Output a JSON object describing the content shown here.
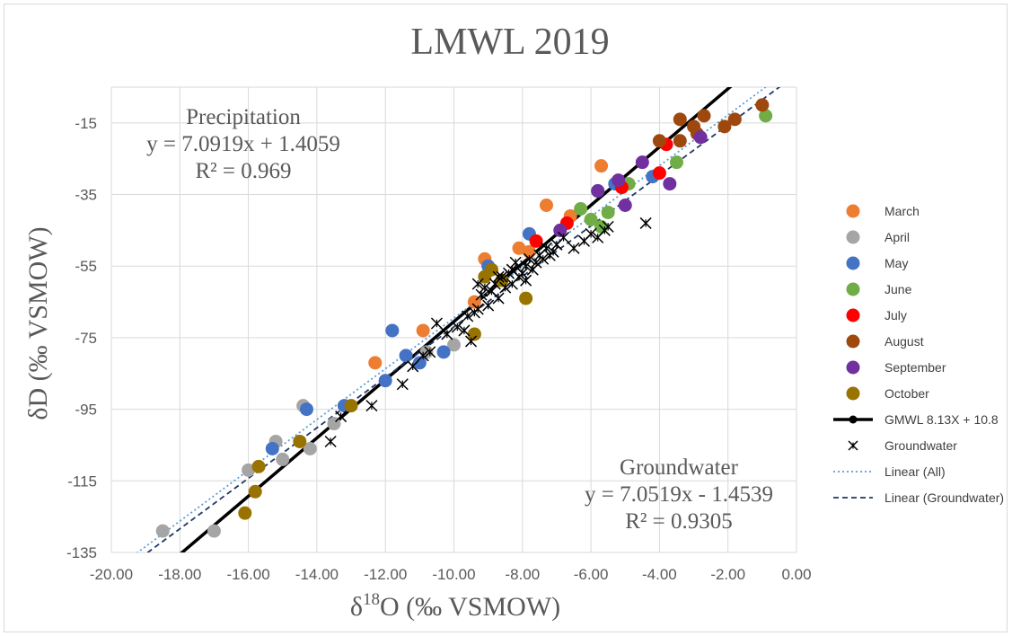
{
  "chart_data": {
    "type": "scatter",
    "title": "LMWL 2019",
    "xlabel": "δ18O (‰ VSMOW)",
    "xlabel_main": "δ",
    "xlabel_sup": "18",
    "xlabel_rest": "O (‰ VSMOW)",
    "ylabel": "δD (‰ VSMOW)",
    "xlim": [
      -20,
      0
    ],
    "ylim": [
      -135,
      -5
    ],
    "x_ticks": [
      -20,
      -18,
      -16,
      -14,
      -12,
      -10,
      -8,
      -6,
      -4,
      -2,
      0
    ],
    "x_tick_labels": [
      "-20.00",
      "-18.00",
      "-16.00",
      "-14.00",
      "-12.00",
      "-10.00",
      "-8.00",
      "-6.00",
      "-4.00",
      "-2.00",
      "0.00"
    ],
    "y_ticks": [
      -135,
      -115,
      -95,
      -75,
      -55,
      -35,
      -15
    ],
    "y_tick_labels": [
      "-135",
      "-115",
      "-95",
      "-75",
      "-55",
      "-35",
      "-15"
    ],
    "grid": true,
    "legend_position": "right",
    "series": [
      {
        "name": "March",
        "color": "#ed7d31",
        "marker": "circle",
        "points": [
          [
            -12.3,
            -82
          ],
          [
            -10.9,
            -73
          ],
          [
            -9.1,
            -53
          ],
          [
            -8.1,
            -50
          ],
          [
            -7.3,
            -38
          ],
          [
            -6.6,
            -41
          ],
          [
            -5.7,
            -27
          ],
          [
            -9.4,
            -65
          ],
          [
            -7.8,
            -51
          ]
        ]
      },
      {
        "name": "April",
        "color": "#a5a5a5",
        "marker": "circle",
        "points": [
          [
            -18.5,
            -129
          ],
          [
            -17.0,
            -129
          ],
          [
            -16.0,
            -112
          ],
          [
            -15.2,
            -104
          ],
          [
            -15.0,
            -109
          ],
          [
            -14.4,
            -94
          ],
          [
            -14.2,
            -106
          ],
          [
            -13.5,
            -99
          ],
          [
            -10.0,
            -77
          ],
          [
            -10.8,
            -79
          ]
        ]
      },
      {
        "name": "May",
        "color": "#4472c4",
        "marker": "circle",
        "points": [
          [
            -15.3,
            -106
          ],
          [
            -14.3,
            -95
          ],
          [
            -13.2,
            -94
          ],
          [
            -12.0,
            -87
          ],
          [
            -11.8,
            -73
          ],
          [
            -11.4,
            -80
          ],
          [
            -10.3,
            -79
          ],
          [
            -11.0,
            -82
          ],
          [
            -9.0,
            -55
          ],
          [
            -7.8,
            -46
          ],
          [
            -4.2,
            -30
          ],
          [
            -5.3,
            -32
          ],
          [
            -5.8,
            -34
          ]
        ]
      },
      {
        "name": "June",
        "color": "#70ad47",
        "marker": "circle",
        "points": [
          [
            -0.9,
            -13
          ],
          [
            -3.5,
            -26
          ],
          [
            -4.9,
            -32
          ],
          [
            -5.5,
            -40
          ],
          [
            -6.3,
            -39
          ],
          [
            -6.0,
            -42
          ],
          [
            -5.7,
            -44
          ]
        ]
      },
      {
        "name": "July",
        "color": "#ff0000",
        "marker": "circle",
        "points": [
          [
            -3.8,
            -21
          ],
          [
            -4.0,
            -29
          ],
          [
            -5.1,
            -33
          ],
          [
            -6.7,
            -43
          ],
          [
            -7.6,
            -48
          ]
        ]
      },
      {
        "name": "August",
        "color": "#9e480e",
        "marker": "circle",
        "points": [
          [
            -1.0,
            -10
          ],
          [
            -1.8,
            -14
          ],
          [
            -2.1,
            -16
          ],
          [
            -2.7,
            -13
          ],
          [
            -3.0,
            -16
          ],
          [
            -3.4,
            -14
          ],
          [
            -3.4,
            -20
          ],
          [
            -4.0,
            -20
          ],
          [
            -2.9,
            -18
          ]
        ]
      },
      {
        "name": "September",
        "color": "#7030a0",
        "marker": "circle",
        "points": [
          [
            -2.8,
            -19
          ],
          [
            -3.7,
            -32
          ],
          [
            -4.5,
            -26
          ],
          [
            -5.0,
            -38
          ],
          [
            -5.8,
            -34
          ],
          [
            -6.9,
            -45
          ],
          [
            -5.2,
            -31
          ]
        ]
      },
      {
        "name": "October",
        "color": "#997300",
        "marker": "circle",
        "points": [
          [
            -16.1,
            -124
          ],
          [
            -15.8,
            -118
          ],
          [
            -15.7,
            -111
          ],
          [
            -14.5,
            -104
          ],
          [
            -13.0,
            -94
          ],
          [
            -9.4,
            -74
          ],
          [
            -7.9,
            -64
          ],
          [
            -9.1,
            -58
          ],
          [
            -8.9,
            -56
          ],
          [
            -8.6,
            -59
          ]
        ]
      },
      {
        "name": "Groundwater",
        "color": "#000000",
        "marker": "x",
        "points": [
          [
            -13.6,
            -104
          ],
          [
            -12.4,
            -94
          ],
          [
            -11.5,
            -88
          ],
          [
            -11.2,
            -83
          ],
          [
            -10.9,
            -80
          ],
          [
            -10.7,
            -79
          ],
          [
            -10.5,
            -71
          ],
          [
            -10.2,
            -74
          ],
          [
            -9.9,
            -72
          ],
          [
            -9.7,
            -73
          ],
          [
            -9.5,
            -76
          ],
          [
            -9.4,
            -68
          ],
          [
            -9.3,
            -67
          ],
          [
            -9.2,
            -63
          ],
          [
            -9.0,
            -66
          ],
          [
            -9.1,
            -61
          ],
          [
            -8.9,
            -62
          ],
          [
            -8.8,
            -60
          ],
          [
            -8.7,
            -64
          ],
          [
            -8.6,
            -58
          ],
          [
            -8.5,
            -61
          ],
          [
            -8.4,
            -57
          ],
          [
            -8.3,
            -60
          ],
          [
            -8.2,
            -54
          ],
          [
            -8.1,
            -58
          ],
          [
            -8.0,
            -57
          ],
          [
            -7.9,
            -55
          ],
          [
            -7.8,
            -53
          ],
          [
            -7.7,
            -56
          ],
          [
            -7.6,
            -54
          ],
          [
            -7.5,
            -52
          ],
          [
            -7.4,
            -53
          ],
          [
            -7.3,
            -50
          ],
          [
            -7.2,
            -52
          ],
          [
            -7.1,
            -51
          ],
          [
            -7.0,
            -49
          ],
          [
            -6.8,
            -47
          ],
          [
            -6.5,
            -50
          ],
          [
            -6.2,
            -48
          ],
          [
            -6.0,
            -46
          ],
          [
            -5.8,
            -47
          ],
          [
            -5.6,
            -45
          ],
          [
            -5.5,
            -44
          ],
          [
            -4.4,
            -43
          ],
          [
            -9.3,
            -60
          ],
          [
            -8.7,
            -58
          ],
          [
            -8.3,
            -56
          ],
          [
            -7.9,
            -59
          ],
          [
            -13.3,
            -97
          ],
          [
            -9.6,
            -69
          ]
        ]
      }
    ],
    "lines": [
      {
        "name": "GMWL 8.13X + 10.8",
        "color": "#000000",
        "style": "solid",
        "slope": 8.13,
        "intercept": 10.8
      },
      {
        "name": "Linear (All)",
        "color": "#5b9bd5",
        "style": "dotted",
        "slope": 7.0919,
        "intercept": 1.4059
      },
      {
        "name": "Linear (Groundwater)",
        "color": "#1f3864",
        "style": "dashed",
        "slope": 7.0519,
        "intercept": -1.4539
      }
    ],
    "annotations": [
      {
        "lines": [
          "Precipitation",
          "y = 7.0919x + 1.4059",
          "R² = 0.969"
        ]
      },
      {
        "lines": [
          "Groundwater",
          "y = 7.0519x - 1.4539",
          "R² = 0.9305"
        ]
      }
    ]
  }
}
